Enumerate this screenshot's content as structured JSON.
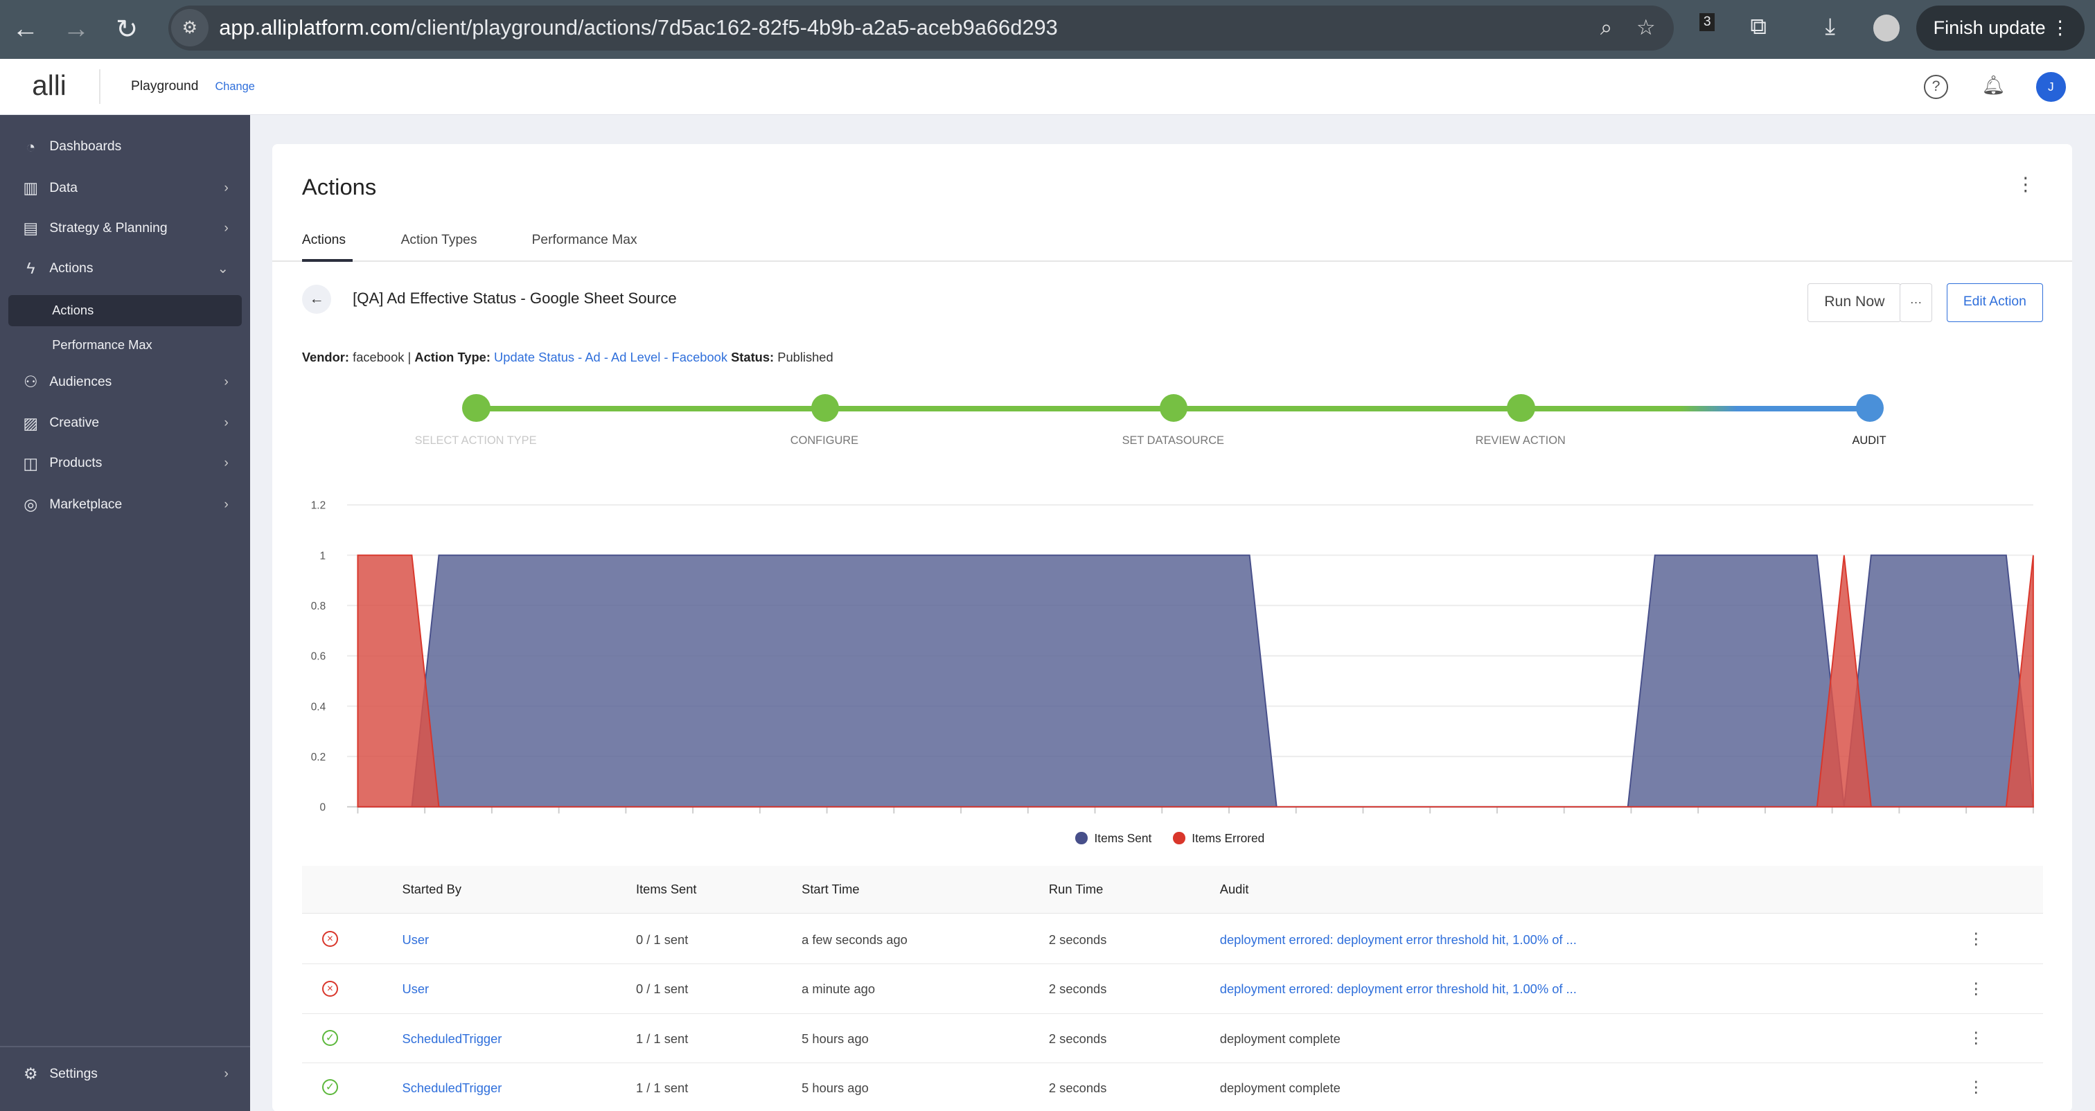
{
  "browser": {
    "url_host": "app.alliplatform.com",
    "url_path": "/client/playground/actions/7d5ac162-82f5-4b9b-a2a5-aceb9a66d293",
    "ext_badge": "3",
    "finish_update": "Finish update"
  },
  "header": {
    "logo": "alli",
    "workspace": "Playground",
    "change": "Change",
    "avatar": "J"
  },
  "sidebar": {
    "items": [
      {
        "label": "Dashboards",
        "icon": "gauge-icon",
        "chev": ""
      },
      {
        "label": "Data",
        "icon": "bar-chart-icon",
        "chev": "›"
      },
      {
        "label": "Strategy & Planning",
        "icon": "clipboard-icon",
        "chev": "›"
      },
      {
        "label": "Actions",
        "icon": "lightning-icon",
        "chev": "⌄"
      },
      {
        "label": "Audiences",
        "icon": "users-icon",
        "chev": "›"
      },
      {
        "label": "Creative",
        "icon": "image-icon",
        "chev": "›"
      },
      {
        "label": "Products",
        "icon": "bag-icon",
        "chev": "›"
      },
      {
        "label": "Marketplace",
        "icon": "compass-icon",
        "chev": "›"
      }
    ],
    "subitems": [
      {
        "label": "Actions",
        "active": true
      },
      {
        "label": "Performance Max",
        "active": false
      }
    ],
    "settings": "Settings"
  },
  "page": {
    "title": "Actions",
    "tabs": [
      "Actions",
      "Action Types",
      "Performance Max"
    ],
    "action_title": "[QA] Ad Effective Status - Google Sheet Source",
    "run_now": "Run Now",
    "more": "···",
    "edit_action": "Edit Action",
    "meta": {
      "vendor_label": "Vendor:",
      "vendor": "facebook",
      "sep": "|",
      "type_label": "Action Type:",
      "type": "Update Status - Ad - Ad Level - Facebook",
      "status_label": "Status:",
      "status": "Published"
    },
    "steps": [
      "SELECT ACTION TYPE",
      "CONFIGURE",
      "SET DATASOURCE",
      "REVIEW ACTION",
      "AUDIT"
    ],
    "colors": {
      "step_done": "#76c043",
      "step_current": "#4a90d9"
    }
  },
  "chart_data": {
    "type": "area",
    "ylim": [
      0,
      1.2
    ],
    "yticks": [
      "0",
      "0.2",
      "0.4",
      "0.6",
      "0.8",
      "1",
      "1.2"
    ],
    "grid": true,
    "legend": "bottom",
    "series": [
      {
        "name": "Items Sent",
        "color": "#5e6798",
        "values": [
          0,
          0,
          0,
          1,
          1,
          1,
          1,
          1,
          1,
          1,
          1,
          1,
          1,
          1,
          1,
          1,
          1,
          1,
          1,
          1,
          1,
          1,
          1,
          1,
          1,
          1,
          1,
          1,
          1,
          1,
          1,
          1,
          1,
          1,
          0,
          0,
          0,
          0,
          0,
          0,
          0,
          0,
          0,
          0,
          0,
          0,
          0,
          0,
          1,
          1,
          1,
          1,
          1,
          1,
          1,
          0,
          1,
          1,
          1,
          1,
          1,
          1,
          0
        ]
      },
      {
        "name": "Items Errored",
        "color": "#d9534a",
        "values": [
          1,
          1,
          1,
          0,
          0,
          0,
          0,
          0,
          0,
          0,
          0,
          0,
          0,
          0,
          0,
          0,
          0,
          0,
          0,
          0,
          0,
          0,
          0,
          0,
          0,
          0,
          0,
          0,
          0,
          0,
          0,
          0,
          0,
          0,
          0,
          0,
          0,
          0,
          0,
          0,
          0,
          0,
          0,
          0,
          0,
          0,
          0,
          0,
          0,
          0,
          0,
          0,
          0,
          0,
          0,
          1,
          0,
          0,
          0,
          0,
          0,
          0,
          1
        ]
      }
    ]
  },
  "table": {
    "columns": [
      "Started By",
      "Items Sent",
      "Start Time",
      "Run Time",
      "Audit"
    ],
    "rows": [
      {
        "status": "error",
        "started_by": "User",
        "items": "0 / 1 sent",
        "start": "a few seconds ago",
        "run": "2 seconds",
        "audit": "deployment errored: deployment error threshold hit, 1.00% of ...",
        "audit_link": true
      },
      {
        "status": "error",
        "started_by": "User",
        "items": "0 / 1 sent",
        "start": "a minute ago",
        "run": "2 seconds",
        "audit": "deployment errored: deployment error threshold hit, 1.00% of ...",
        "audit_link": true
      },
      {
        "status": "success",
        "started_by": "ScheduledTrigger",
        "items": "1 / 1 sent",
        "start": "5 hours ago",
        "run": "2 seconds",
        "audit": "deployment complete",
        "audit_link": false
      },
      {
        "status": "success",
        "started_by": "ScheduledTrigger",
        "items": "1 / 1 sent",
        "start": "5 hours ago",
        "run": "2 seconds",
        "audit": "deployment complete",
        "audit_link": false
      }
    ]
  }
}
